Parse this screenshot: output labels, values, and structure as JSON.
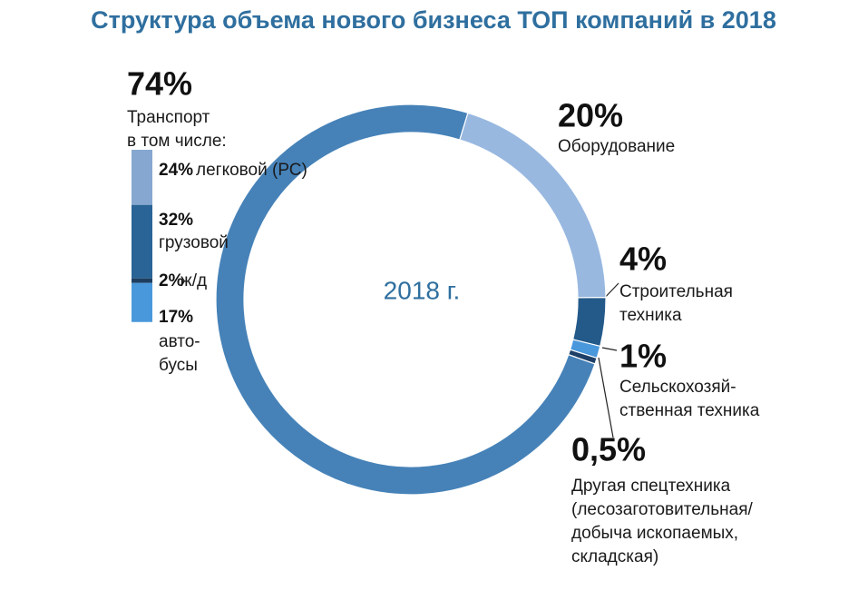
{
  "chart_data": {
    "type": "donut",
    "title": "Структура объема нового бизнеса ТОП компаний в 2018",
    "center_label": "2018 г.",
    "categories": [
      "Транспорт",
      "Оборудование",
      "Строительная\nтехника",
      "Сельскохозяй-\nственная техника",
      "Другая спецтехника\n(лесозаготовительная/\nдобыча ископаемых,\nскладская)"
    ],
    "values": [
      74,
      20,
      4,
      1,
      0.5
    ],
    "value_labels": [
      "74%",
      "20%",
      "4%",
      "1%",
      "0,5%"
    ],
    "colors": [
      "#4682b8",
      "#98b8e0",
      "#245a8a",
      "#4a98dc",
      "#1e3f66"
    ],
    "breakdown_title": "в том числе:",
    "breakdown": {
      "series": [
        {
          "name": "легковой (РС)",
          "color": "#86a8d0",
          "values": [
            24
          ],
          "value_labels": [
            "24%"
          ]
        },
        {
          "name": "грузовой",
          "color": "#2a6496",
          "values": [
            32
          ],
          "value_labels": [
            "32%"
          ]
        },
        {
          "name": "ж/д",
          "color": "#1d3e60",
          "values": [
            2
          ],
          "value_labels": [
            "2%"
          ]
        },
        {
          "name": "авто-\nбусы",
          "color": "#4a98dc",
          "values": [
            17
          ],
          "value_labels": [
            "17%"
          ]
        }
      ]
    }
  }
}
